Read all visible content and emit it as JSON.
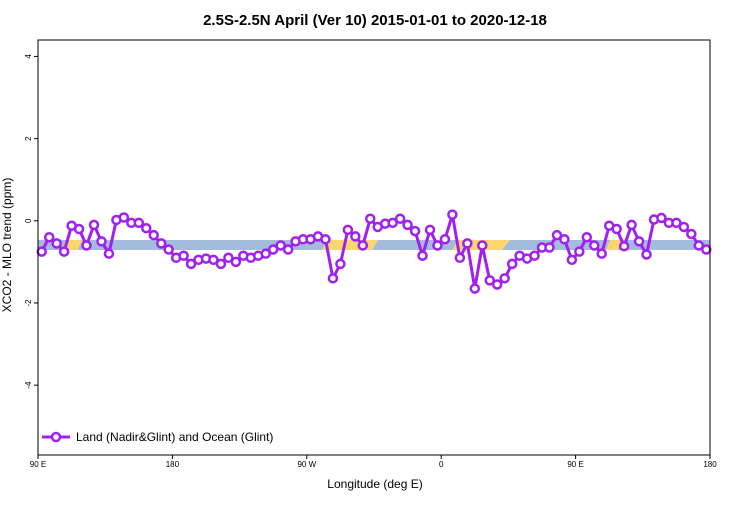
{
  "chart_data": {
    "type": "line",
    "title": "2.5S-2.5N April (Ver 10)   2015-01-01 to 2020-12-18",
    "x_label": "Longitude (deg E)",
    "y_label": "XCO2 - MLO trend (ppm)",
    "xlim": [
      90,
      540
    ],
    "xticks": [
      {
        "value": 90,
        "label": "90 E"
      },
      180,
      {
        "value": 270,
        "label": "90 W"
      },
      {
        "value": 360,
        "label": "0"
      },
      {
        "value": 450,
        "label": "90 E"
      },
      {
        "value": 540,
        "label": "180"
      }
    ],
    "ylim": [
      -5.7,
      4.4
    ],
    "yticks": [
      -4,
      -2,
      0,
      2,
      4
    ],
    "x": [
      92.5,
      97.5,
      102.5,
      107.5,
      112.5,
      117.5,
      122.5,
      127.5,
      132.5,
      137.5,
      142.5,
      147.5,
      152.5,
      157.5,
      162.5,
      167.5,
      172.5,
      177.5,
      182.5,
      187.5,
      192.5,
      197.5,
      202.5,
      207.5,
      212.5,
      217.5,
      222.5,
      227.5,
      232.5,
      237.5,
      242.5,
      247.5,
      252.5,
      257.5,
      262.5,
      267.5,
      272.5,
      277.5,
      282.5,
      287.5,
      292.5,
      297.5,
      302.5,
      307.5,
      312.5,
      317.5,
      322.5,
      327.5,
      332.5,
      337.5,
      342.5,
      347.5,
      352.5,
      357.5,
      362.5,
      367.5,
      372.5,
      377.5,
      382.5,
      387.5,
      392.5,
      397.5,
      402.5,
      407.5,
      412.5,
      417.5,
      422.5,
      427.5,
      432.5,
      437.5,
      442.5,
      447.5,
      452.5,
      457.5,
      462.5,
      467.5,
      472.5,
      477.5,
      482.5,
      487.5,
      492.5,
      497.5,
      502.5,
      507.5,
      512.5,
      517.5,
      522.5,
      527.5,
      532.5,
      537.5
    ],
    "series": [
      {
        "name": "Land (Nadir&Glint) and Ocean (Glint)",
        "color": "#a020f0",
        "values": [
          -0.75,
          -0.4,
          -0.55,
          -0.75,
          -0.12,
          -0.2,
          -0.6,
          -0.1,
          -0.5,
          -0.8,
          0.02,
          0.08,
          -0.05,
          -0.05,
          -0.18,
          -0.35,
          -0.55,
          -0.7,
          -0.9,
          -0.85,
          -1.05,
          -0.95,
          -0.92,
          -0.95,
          -1.05,
          -0.9,
          -1.0,
          -0.85,
          -0.9,
          -0.85,
          -0.8,
          -0.7,
          -0.6,
          -0.7,
          -0.5,
          -0.45,
          -0.45,
          -0.38,
          -0.45,
          -1.4,
          -1.05,
          -0.22,
          -0.38,
          -0.6,
          0.05,
          -0.15,
          -0.07,
          -0.05,
          0.05,
          -0.1,
          -0.25,
          -0.85,
          -0.22,
          -0.6,
          -0.45,
          0.15,
          -0.9,
          -0.55,
          -1.65,
          -0.6,
          -1.45,
          -1.55,
          -1.4,
          -1.05,
          -0.85,
          -0.92,
          -0.85,
          -0.65,
          -0.65,
          -0.35,
          -0.45,
          -0.95,
          -0.75,
          -0.4,
          -0.6,
          -0.8,
          -0.12,
          -0.2,
          -0.62,
          -0.1,
          -0.5,
          -0.82,
          0.03,
          0.07,
          -0.05,
          -0.05,
          -0.15,
          -0.32,
          -0.6,
          -0.7
        ]
      }
    ]
  }
}
